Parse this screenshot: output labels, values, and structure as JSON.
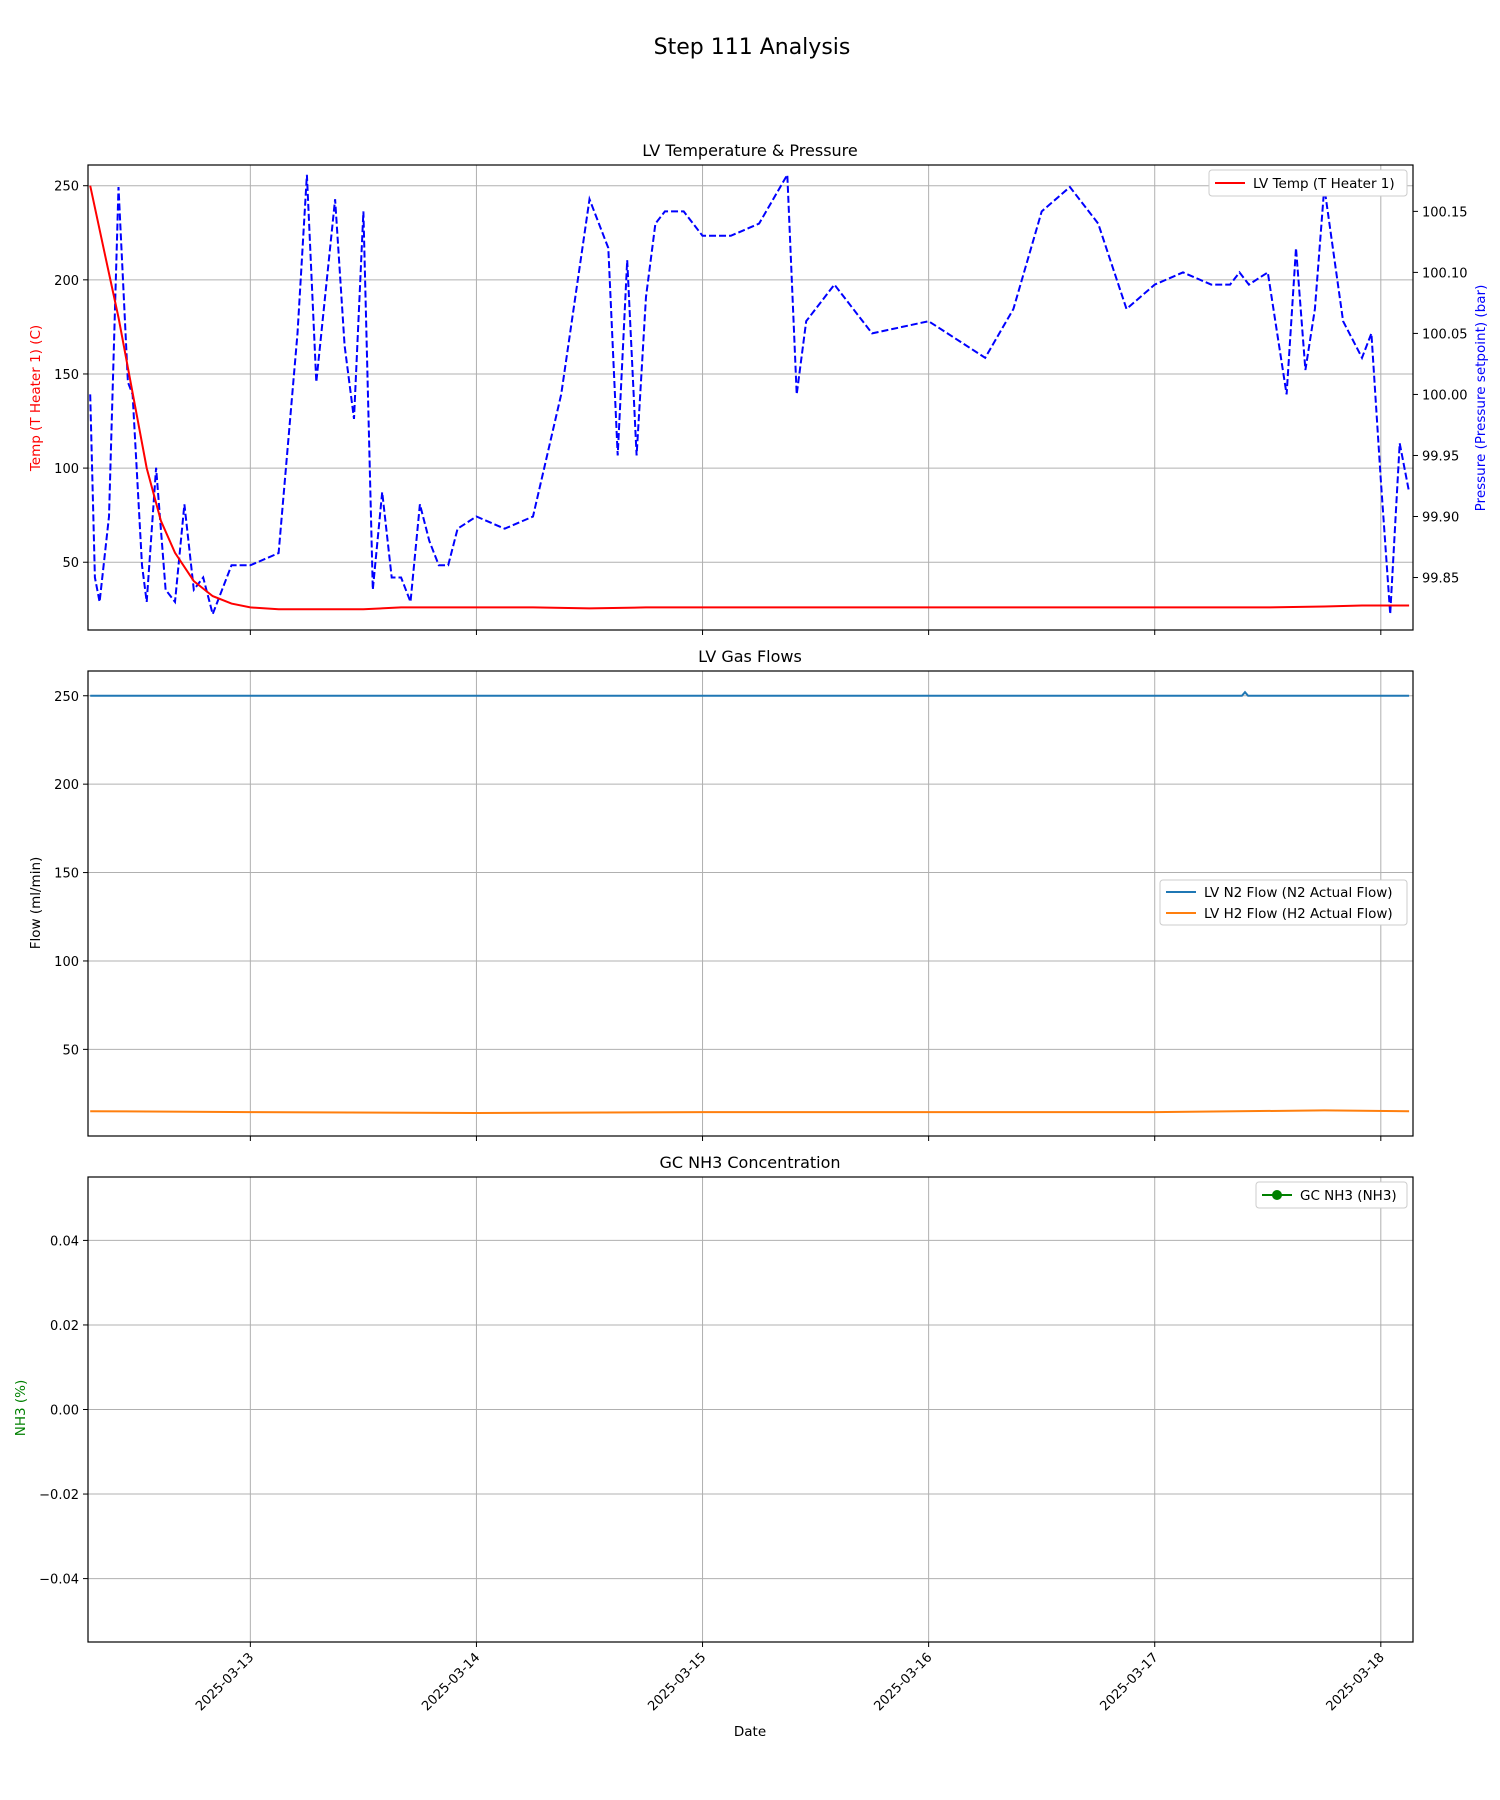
{
  "figure": {
    "title": "Step 111 Analysis"
  },
  "x_axis": {
    "label": "Date",
    "range": [
      "2025-03-12 06:46",
      "2025-03-18 03:25"
    ],
    "tick_labels": [
      "2025-03-13",
      "2025-03-14",
      "2025-03-15",
      "2025-03-16",
      "2025-03-17",
      "2025-03-18"
    ]
  },
  "colors": {
    "temp": "#ff0000",
    "pressure": "#0000ff",
    "n2": "#1f77b4",
    "h2": "#ff7f0e",
    "nh3": "#008000"
  },
  "chart_data": [
    {
      "type": "line",
      "title": "LV Temperature & Pressure",
      "xlabel": "",
      "ylabel": "Temp (T Heater 1) (C)",
      "ylabel_right": "Pressure (Pressure setpoint) (bar)",
      "ylim": [
        14,
        261
      ],
      "ylim_right": [
        99.807,
        100.188
      ],
      "yticks": [
        "50",
        "100",
        "150",
        "200",
        "250"
      ],
      "yticks_right": [
        "99.85",
        "99.90",
        "99.95",
        "100.00",
        "100.05",
        "100.10",
        "100.15"
      ],
      "grid": true,
      "legend_position": "upper right",
      "legend": [
        "LV Temp (T Heater 1)"
      ],
      "series": [
        {
          "name": "LV Temp (T Heater 1)",
          "axis": "left",
          "style": "solid",
          "x": [
            "2025-03-12 07:00",
            "2025-03-12 08:30",
            "2025-03-12 10:00",
            "2025-03-12 11:30",
            "2025-03-12 13:00",
            "2025-03-12 14:30",
            "2025-03-12 16:00",
            "2025-03-12 18:00",
            "2025-03-12 20:00",
            "2025-03-12 22:00",
            "2025-03-13 00:00",
            "2025-03-13 03:00",
            "2025-03-13 06:00",
            "2025-03-13 12:00",
            "2025-03-13 16:00",
            "2025-03-13 20:00",
            "2025-03-14 06:00",
            "2025-03-14 12:00",
            "2025-03-14 18:00",
            "2025-03-15 00:00",
            "2025-03-15 12:00",
            "2025-03-16 00:00",
            "2025-03-16 12:00",
            "2025-03-17 00:00",
            "2025-03-17 09:00",
            "2025-03-17 12:00",
            "2025-03-17 18:00",
            "2025-03-17 22:00",
            "2025-03-18 03:00"
          ],
          "values": [
            250,
            215,
            180,
            140,
            100,
            72,
            55,
            40,
            32,
            28,
            26,
            25,
            25,
            25,
            26,
            26,
            26,
            25.5,
            26,
            26,
            26,
            26,
            26,
            26,
            26,
            26,
            26.5,
            27,
            27
          ]
        },
        {
          "name": "Pressure (Pressure setpoint)",
          "axis": "right",
          "style": "dashed",
          "x": [
            "2025-03-12 07:00",
            "2025-03-12 07:30",
            "2025-03-12 08:00",
            "2025-03-12 09:00",
            "2025-03-12 10:00",
            "2025-03-12 11:00",
            "2025-03-12 11:30",
            "2025-03-12 12:30",
            "2025-03-12 13:00",
            "2025-03-12 14:00",
            "2025-03-12 15:00",
            "2025-03-12 16:00",
            "2025-03-12 17:00",
            "2025-03-12 18:00",
            "2025-03-12 19:00",
            "2025-03-12 20:00",
            "2025-03-12 21:00",
            "2025-03-12 22:00",
            "2025-03-13 00:00",
            "2025-03-13 03:00",
            "2025-03-13 05:00",
            "2025-03-13 06:00",
            "2025-03-13 07:00",
            "2025-03-13 09:00",
            "2025-03-13 10:00",
            "2025-03-13 11:00",
            "2025-03-13 12:00",
            "2025-03-13 13:00",
            "2025-03-13 14:00",
            "2025-03-13 15:00",
            "2025-03-13 16:00",
            "2025-03-13 17:00",
            "2025-03-13 18:00",
            "2025-03-13 19:00",
            "2025-03-13 20:00",
            "2025-03-13 21:00",
            "2025-03-13 22:00",
            "2025-03-14 00:00",
            "2025-03-14 03:00",
            "2025-03-14 06:00",
            "2025-03-14 09:00",
            "2025-03-14 12:00",
            "2025-03-14 14:00",
            "2025-03-14 15:00",
            "2025-03-14 16:00",
            "2025-03-14 17:00",
            "2025-03-14 18:00",
            "2025-03-14 19:00",
            "2025-03-14 20:00",
            "2025-03-14 22:00",
            "2025-03-15 00:00",
            "2025-03-15 03:00",
            "2025-03-15 06:00",
            "2025-03-15 09:00",
            "2025-03-15 10:00",
            "2025-03-15 11:00",
            "2025-03-15 14:00",
            "2025-03-15 18:00",
            "2025-03-16 00:00",
            "2025-03-16 06:00",
            "2025-03-16 09:00",
            "2025-03-16 12:00",
            "2025-03-16 15:00",
            "2025-03-16 18:00",
            "2025-03-16 21:00",
            "2025-03-17 00:00",
            "2025-03-17 03:00",
            "2025-03-17 06:00",
            "2025-03-17 08:00",
            "2025-03-17 09:00",
            "2025-03-17 10:00",
            "2025-03-17 12:00",
            "2025-03-17 14:00",
            "2025-03-17 15:00",
            "2025-03-17 16:00",
            "2025-03-17 17:00",
            "2025-03-17 18:00",
            "2025-03-17 20:00",
            "2025-03-17 22:00",
            "2025-03-17 23:00",
            "2025-03-18 00:00",
            "2025-03-18 01:00",
            "2025-03-18 02:00",
            "2025-03-18 03:00"
          ],
          "values": [
            100.0,
            99.85,
            99.83,
            99.9,
            100.17,
            100.01,
            100.0,
            99.86,
            99.83,
            99.94,
            99.84,
            99.83,
            99.91,
            99.84,
            99.85,
            99.82,
            99.84,
            99.86,
            99.86,
            99.87,
            100.05,
            100.18,
            100.01,
            100.16,
            100.04,
            99.98,
            100.15,
            99.84,
            99.92,
            99.85,
            99.85,
            99.83,
            99.91,
            99.88,
            99.86,
            99.86,
            99.89,
            99.9,
            99.89,
            99.9,
            100.0,
            100.16,
            100.12,
            99.95,
            100.11,
            99.95,
            100.08,
            100.14,
            100.15,
            100.15,
            100.13,
            100.13,
            100.14,
            100.18,
            100.0,
            100.06,
            100.09,
            100.05,
            100.06,
            100.03,
            100.07,
            100.15,
            100.17,
            100.14,
            100.07,
            100.09,
            100.1,
            100.09,
            100.09,
            100.1,
            100.09,
            100.1,
            100.0,
            100.12,
            100.02,
            100.07,
            100.17,
            100.06,
            100.03,
            100.05,
            99.93,
            99.82,
            99.96,
            99.92
          ]
        }
      ]
    },
    {
      "type": "line",
      "title": "LV Gas Flows",
      "xlabel": "",
      "ylabel": "Flow (ml/min)",
      "ylim": [
        1,
        264
      ],
      "yticks": [
        "50",
        "100",
        "150",
        "200",
        "250"
      ],
      "grid": true,
      "legend_position": "center right",
      "legend": [
        "LV N2 Flow (N2 Actual Flow)",
        "LV H2 Flow (H2 Actual Flow)"
      ],
      "series": [
        {
          "name": "LV N2 Flow (N2 Actual Flow)",
          "x": [
            "2025-03-12 07:00",
            "2025-03-17 09:15",
            "2025-03-17 09:35",
            "2025-03-17 09:55",
            "2025-03-18 03:00"
          ],
          "values": [
            250,
            250,
            252,
            250,
            250
          ]
        },
        {
          "name": "LV H2 Flow (H2 Actual Flow)",
          "x": [
            "2025-03-12 07:00",
            "2025-03-13 00:00",
            "2025-03-14 00:00",
            "2025-03-15 00:00",
            "2025-03-16 00:00",
            "2025-03-17 00:00",
            "2025-03-17 18:00",
            "2025-03-18 03:00"
          ],
          "values": [
            15,
            14.5,
            14,
            14.5,
            14.5,
            14.5,
            15.5,
            15
          ]
        }
      ]
    },
    {
      "type": "line",
      "title": "GC NH3 Concentration",
      "xlabel": "Date",
      "ylabel": "NH3 (%)",
      "ylim": [
        -0.055,
        0.055
      ],
      "yticks": [
        "0.04",
        "0.02",
        "0.00",
        "−0.02",
        "−0.04"
      ],
      "grid": true,
      "legend_position": "upper right",
      "legend": [
        "GC NH3 (NH3)"
      ],
      "series": [
        {
          "name": "GC NH3 (NH3)",
          "marker": "circle",
          "x": [],
          "values": []
        }
      ]
    }
  ]
}
